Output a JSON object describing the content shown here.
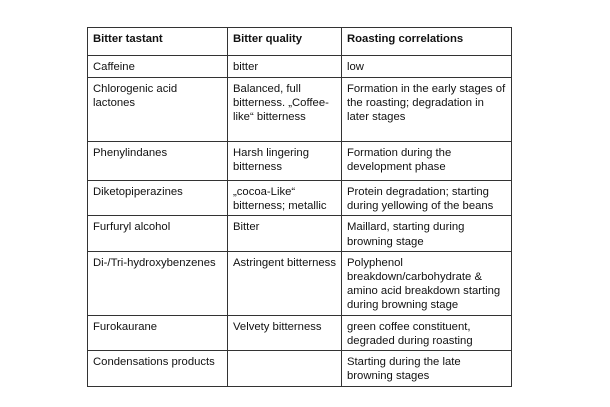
{
  "table": {
    "headers": [
      "Bitter tastant",
      "Bitter quality",
      "Roasting correlations"
    ],
    "rows": [
      [
        "Caffeine",
        "bitter",
        "low"
      ],
      [
        "Chlorogenic acid lactones",
        "Balanced, full bitterness. „Coffee-like“ bitterness",
        "Formation in the early stages of the roasting; degradation in later stages"
      ],
      [
        "Phenylindanes",
        "Harsh lingering bitterness",
        "Formation during the development phase"
      ],
      [
        "Diketopiperazines",
        "„cocoa-Like“ bitterness; metallic",
        "Protein degradation; starting during yellowing of the beans"
      ],
      [
        "Furfuryl alcohol",
        "Bitter",
        "Maillard, starting during browning stage"
      ],
      [
        "Di-/Tri-hydroxybenzenes",
        "Astringent bitterness",
        "Polyphenol breakdown/carbohydrate & amino acid breakdown starting during browning stage"
      ],
      [
        "Furokaurane",
        "Velvety bitterness",
        "green coffee constituent, degraded during roasting"
      ],
      [
        "Condensations products",
        "",
        "Starting during the late browning stages"
      ]
    ]
  }
}
